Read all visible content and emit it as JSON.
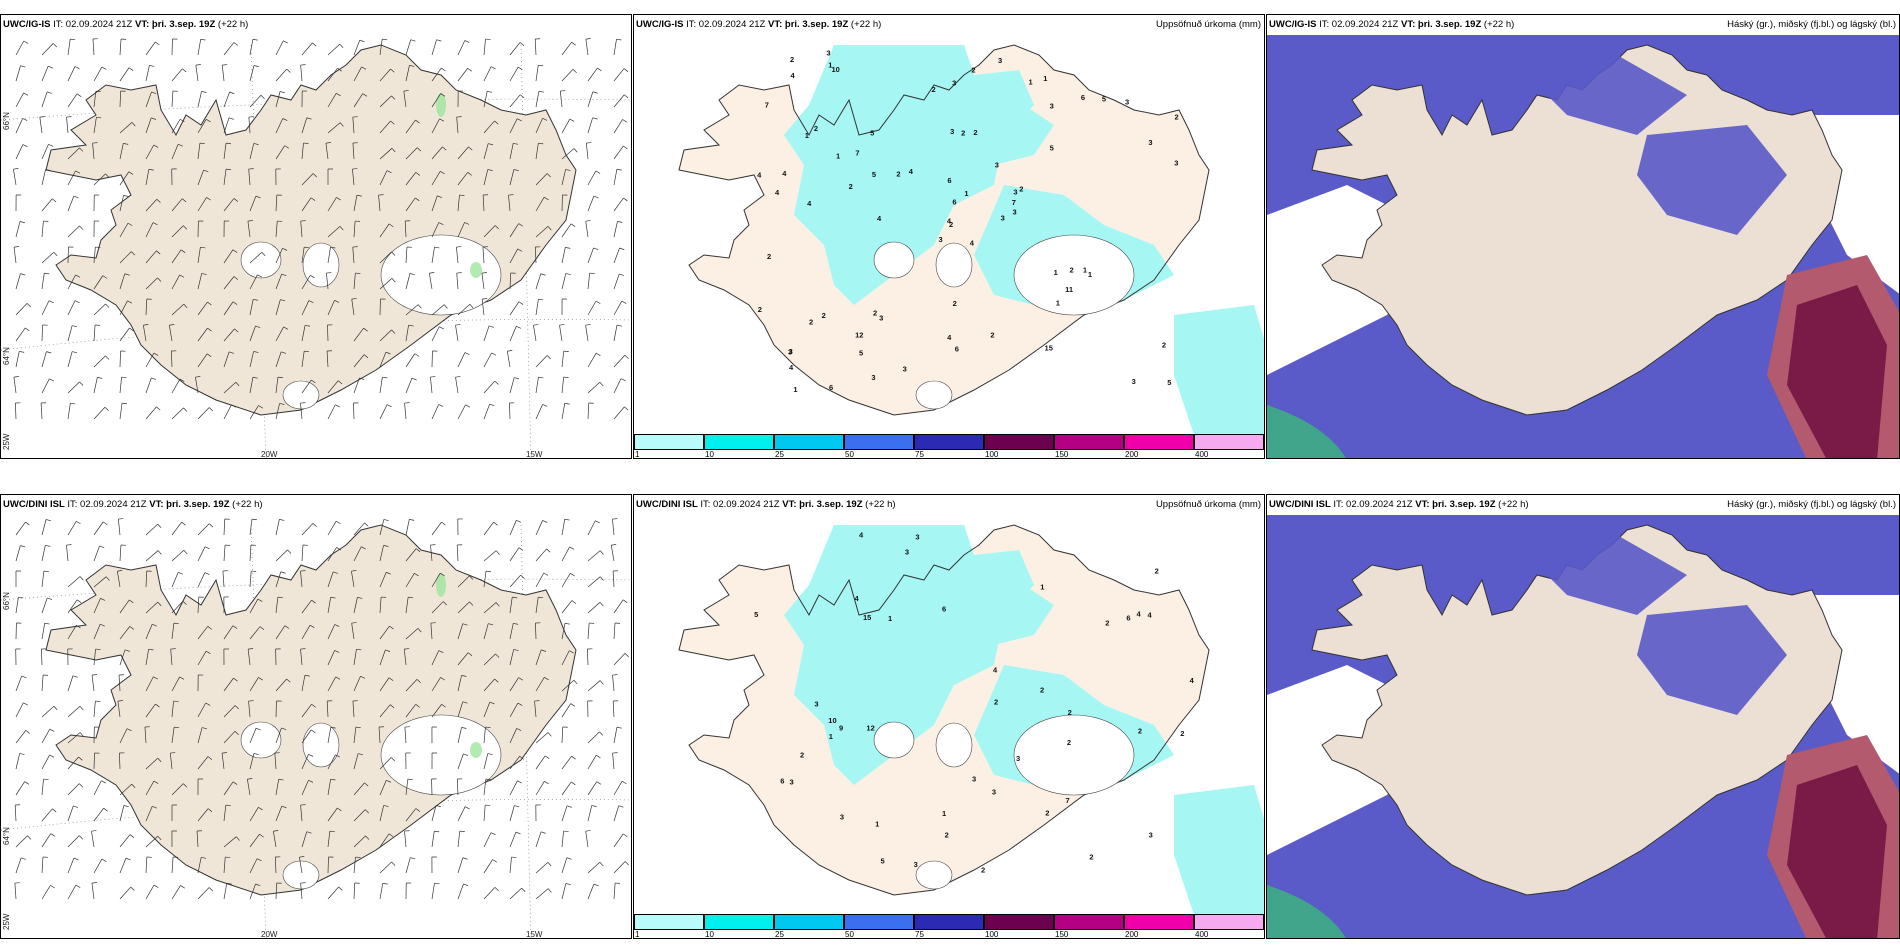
{
  "panels": [
    {
      "model": "UWC/IG-IS",
      "it": "IT: 02.09.2024 21Z",
      "vt": "VT: þri. 3.sep. 19Z",
      "lead": "(+22 h)",
      "right": ""
    },
    {
      "model": "UWC/IG-IS",
      "it": "IT: 02.09.2024 21Z",
      "vt": "VT: þri. 3.sep. 19Z",
      "lead": "(+22 h)",
      "right": "Uppsöfnuð úrkoma (mm)"
    },
    {
      "model": "UWC/IG-IS",
      "it": "IT: 02.09.2024 21Z",
      "vt": "VT: þri. 3.sep. 19Z",
      "lead": "(+22 h)",
      "right": "Háský (gr.), miðský (fj.bl.) og lágský (bl.)"
    },
    {
      "model": "UWC/DINI ISL",
      "it": "IT: 02.09.2024 21Z",
      "vt": "VT: þri. 3.sep. 19Z",
      "lead": "(+22 h)",
      "right": ""
    },
    {
      "model": "UWC/DINI ISL",
      "it": "IT: 02.09.2024 21Z",
      "vt": "VT: þri. 3.sep. 19Z",
      "lead": "(+22 h)",
      "right": "Uppsöfnuð úrkoma (mm)"
    },
    {
      "model": "UWC/DINI ISL",
      "it": "IT: 02.09.2024 21Z",
      "vt": "VT: þri. 3.sep. 19Z",
      "lead": "(+22 h)",
      "right": "Háský (gr.), miðský (fj.bl.) og lágský (bl.)"
    }
  ],
  "axis_labels": {
    "lat66": "66°N",
    "lat64": "64°N",
    "lon20": "20W",
    "lon15": "15W",
    "lon25": "25W"
  },
  "colorbar": {
    "ticks": [
      "1",
      "10",
      "25",
      "50",
      "75",
      "100",
      "150",
      "200",
      "400"
    ],
    "colors": [
      "#b8fbfb",
      "#00f0f0",
      "#00c8f0",
      "#3c6ef0",
      "#2a2ab4",
      "#6e0050",
      "#b40082",
      "#f000aa",
      "#f5aaf0"
    ]
  },
  "precip_values_top": [
    "4",
    "1",
    "2",
    "3",
    "3",
    "3",
    "1",
    "2",
    "3",
    "3",
    "10",
    "5",
    "4",
    "2",
    "3",
    "5",
    "6",
    "3",
    "3",
    "2",
    "4",
    "4",
    "5",
    "2",
    "2",
    "1",
    "2",
    "3",
    "4",
    "1",
    "3",
    "4",
    "4",
    "6",
    "5",
    "6",
    "2",
    "3",
    "2",
    "1",
    "3",
    "2",
    "2",
    "1",
    "3",
    "4",
    "7",
    "1",
    "6",
    "3",
    "2",
    "3",
    "7",
    "11",
    "15",
    "12",
    "1",
    "2",
    "2",
    "3",
    "2",
    "4",
    "4",
    "7",
    "5",
    "3",
    "1",
    "2",
    "1",
    "2",
    "2",
    "3",
    "2",
    "5",
    "3",
    "4",
    "1",
    "2",
    "6"
  ],
  "precip_values_bottom": [
    "2",
    "2",
    "2",
    "6",
    "4",
    "5",
    "4",
    "3",
    "4",
    "2",
    "5",
    "4",
    "3",
    "2",
    "3",
    "10",
    "6",
    "7",
    "15",
    "12",
    "3",
    "1",
    "2",
    "3",
    "2",
    "2",
    "3",
    "2",
    "1",
    "4",
    "3",
    "2",
    "1",
    "1",
    "3",
    "4",
    "9",
    "2",
    "6",
    "3",
    "1",
    "2",
    "2",
    "3"
  ],
  "colors": {
    "land": "#f0e6d8",
    "land_sea_border": "#333",
    "precip": "#a6f7f4",
    "high_cloud": "#5a5ac8",
    "mid_cloud": "#3a78f0",
    "low_cloud": "#7a1a46",
    "low_cloud2": "#b45a6e",
    "green": "#3ab87a"
  }
}
